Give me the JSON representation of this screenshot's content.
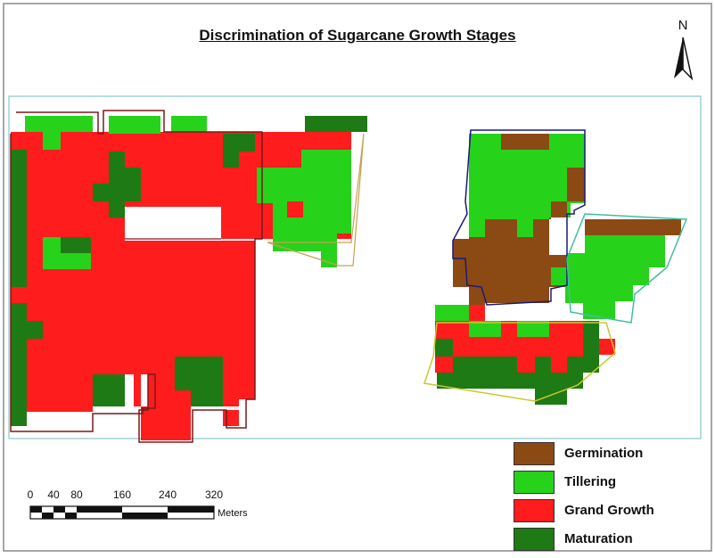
{
  "title": "Discrimination of Sugarcane Growth Stages",
  "north_arrow": {
    "label": "N"
  },
  "legend": {
    "items": [
      {
        "label": "Germination",
        "color": "#8b4a14"
      },
      {
        "label": "Tillering",
        "color": "#27d21b"
      },
      {
        "label": "Grand Growth",
        "color": "#ff1c1c"
      },
      {
        "label": "Maturation",
        "color": "#1e7a14"
      }
    ]
  },
  "scale_bar": {
    "ticks": [
      "0",
      "40",
      "80",
      "160",
      "240",
      "320"
    ],
    "unit": "Meters"
  },
  "colors": {
    "germination": "#8b4a14",
    "tillering": "#27d21b",
    "grand_growth": "#ff1c1c",
    "maturation": "#1e7a14",
    "frame": "#8a8a8a",
    "map_border": "#9fd3d3"
  }
}
